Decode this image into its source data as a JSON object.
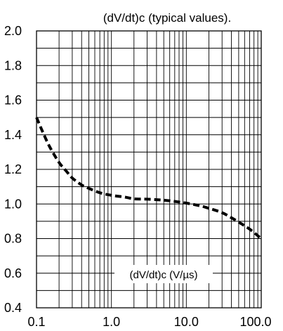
{
  "chart_data": {
    "type": "line",
    "title": "(dV/dt)c (typical values).",
    "xlabel": "(dV/dt)c (V/µs)",
    "ylabel": "",
    "x_scale": "log",
    "xlim": [
      0.1,
      100
    ],
    "ylim": [
      0.4,
      2.0
    ],
    "x_ticks": [
      "0.1",
      "1.0",
      "10.0",
      "100.0"
    ],
    "y_ticks": [
      "0.4",
      "0.6",
      "0.8",
      "1.0",
      "1.2",
      "1.4",
      "1.6",
      "1.8",
      "2.0"
    ],
    "grid": true,
    "line_style": "dashed",
    "series": [
      {
        "x": [
          0.1,
          0.12,
          0.15,
          0.2,
          0.25,
          0.3,
          0.4,
          0.5,
          0.7,
          1.0,
          1.5,
          2,
          3,
          5,
          7,
          10,
          15,
          20,
          30,
          40,
          50,
          70,
          100
        ],
        "y": [
          1.5,
          1.42,
          1.33,
          1.24,
          1.19,
          1.15,
          1.11,
          1.09,
          1.065,
          1.05,
          1.04,
          1.03,
          1.028,
          1.022,
          1.015,
          1.005,
          0.99,
          0.975,
          0.95,
          0.92,
          0.895,
          0.855,
          0.8
        ]
      }
    ]
  }
}
